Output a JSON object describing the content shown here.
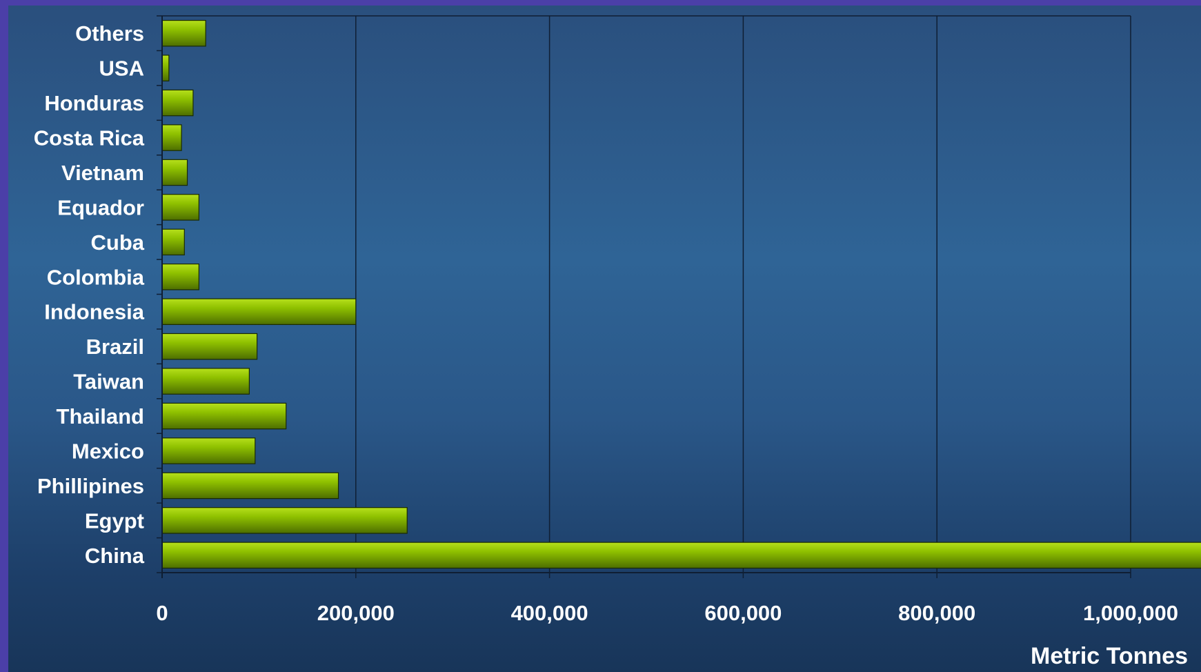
{
  "chart_data": {
    "type": "bar",
    "orientation": "horizontal",
    "categories": [
      "Others",
      "USA",
      "Honduras",
      "Costa Rica",
      "Vietnam",
      "Equador",
      "Cuba",
      "Colombia",
      "Indonesia",
      "Brazil",
      "Taiwan",
      "Thailand",
      "Mexico",
      "Phillipines",
      "Egypt",
      "China"
    ],
    "values": [
      45000,
      7000,
      32000,
      20000,
      26000,
      38000,
      23000,
      38000,
      200000,
      98000,
      90000,
      128000,
      96000,
      182000,
      253000,
      1075000
    ],
    "title": "",
    "xlabel": "Metric Tonnes",
    "ylabel": "",
    "xlim": [
      0,
      1000000
    ],
    "xticks": [
      0,
      200000,
      400000,
      600000,
      800000,
      1000000
    ],
    "xtick_labels": [
      "0",
      "200,000",
      "400,000",
      "600,000",
      "800,000",
      "1,000,000"
    ],
    "grid": "vertical",
    "legend": "none",
    "colors": {
      "bar_fill": "#8fc100",
      "bar_highlight": "#b6e01c",
      "bar_shadow": "#4d6e00",
      "bar_edge": "#1a2a00",
      "gridline": "#0f1e33",
      "text": "#ffffff",
      "frame": "#4b3fa8"
    }
  }
}
